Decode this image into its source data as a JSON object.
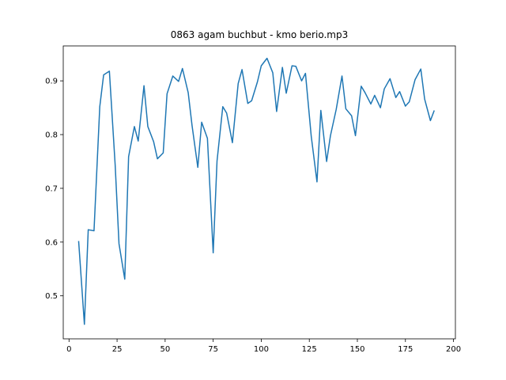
{
  "chart_data": {
    "type": "line",
    "title": "0863 agam buchbut - kmo berio.mp3",
    "xlabel": "",
    "ylabel": "",
    "xlim": [
      -3,
      201
    ],
    "ylim": [
      0.42,
      0.965
    ],
    "xticks": [
      0,
      25,
      50,
      75,
      100,
      125,
      150,
      175,
      200
    ],
    "yticks": [
      0.5,
      0.6,
      0.7,
      0.8,
      0.9
    ],
    "grid": false,
    "series": [
      {
        "color": "#1f77b4",
        "x": [
          5,
          8,
          10,
          13,
          16,
          18,
          21,
          24,
          26,
          29,
          31,
          34,
          36,
          39,
          41,
          44,
          46,
          49,
          51,
          54,
          57,
          59,
          62,
          64,
          67,
          69,
          72,
          75,
          77,
          80,
          82,
          85,
          88,
          90,
          93,
          95,
          98,
          100,
          103,
          106,
          108,
          111,
          113,
          116,
          118,
          121,
          123,
          126,
          129,
          131,
          134,
          136,
          139,
          142,
          144,
          147,
          149,
          152,
          154,
          157,
          159,
          162,
          164,
          167,
          170,
          172,
          175,
          177,
          180,
          183,
          185,
          188,
          190
        ],
        "y": [
          0.602,
          0.447,
          0.623,
          0.621,
          0.852,
          0.911,
          0.918,
          0.744,
          0.597,
          0.531,
          0.759,
          0.815,
          0.788,
          0.891,
          0.815,
          0.787,
          0.755,
          0.766,
          0.876,
          0.909,
          0.899,
          0.923,
          0.878,
          0.817,
          0.739,
          0.823,
          0.793,
          0.58,
          0.751,
          0.852,
          0.84,
          0.785,
          0.895,
          0.921,
          0.858,
          0.863,
          0.898,
          0.928,
          0.942,
          0.915,
          0.843,
          0.925,
          0.877,
          0.928,
          0.927,
          0.9,
          0.914,
          0.797,
          0.712,
          0.845,
          0.75,
          0.798,
          0.847,
          0.909,
          0.848,
          0.835,
          0.798,
          0.89,
          0.878,
          0.857,
          0.873,
          0.85,
          0.885,
          0.904,
          0.869,
          0.88,
          0.853,
          0.861,
          0.902,
          0.922,
          0.866,
          0.826,
          0.845
        ]
      }
    ]
  }
}
